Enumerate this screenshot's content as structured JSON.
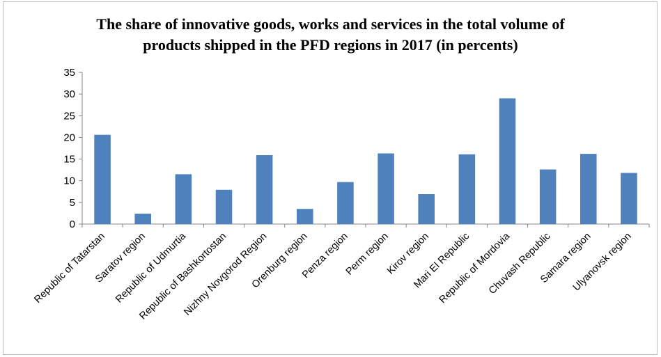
{
  "chart_data": {
    "type": "bar",
    "title_lines": [
      "The share of innovative goods, works and services in the total volume of",
      "products shipped in the PFD regions in 2017 (in percents)"
    ],
    "categories": [
      "Republic of Tatarstan",
      "Saratov region",
      "Republic of Udmurtia",
      "Republic of Bashkortostan",
      "Nizhny Novgorod Region",
      "Orenburg region",
      "Penza region",
      "Perm region",
      "Kirov region",
      "Mari El Republic",
      "Republic of Mordovia",
      "Chuvash Republic",
      "Samara region",
      "Ulyanovsk region"
    ],
    "values": [
      20.6,
      2.4,
      11.5,
      7.9,
      15.9,
      3.5,
      9.7,
      16.3,
      6.9,
      16.1,
      29.0,
      12.6,
      16.2,
      11.8
    ],
    "ylim": [
      0,
      35
    ],
    "yticks": [
      0,
      5,
      10,
      15,
      20,
      25,
      30,
      35
    ],
    "xlabel": "",
    "ylabel": "",
    "grid": false,
    "legend": "none",
    "bar_color": "#4f81bd"
  }
}
